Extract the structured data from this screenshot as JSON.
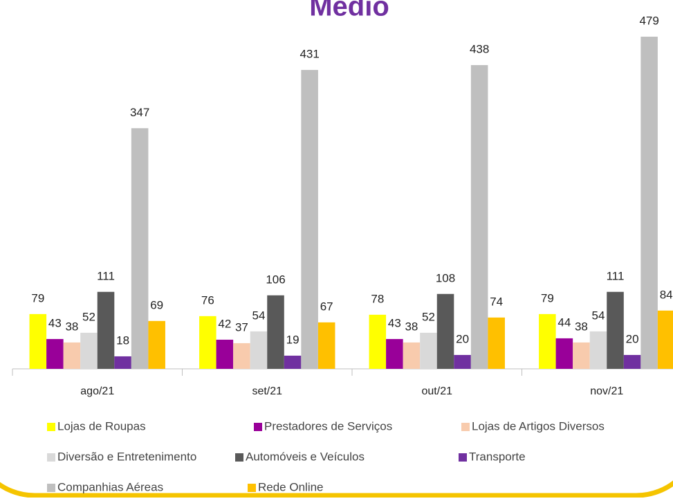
{
  "chart_data": {
    "type": "bar",
    "title": "Médio",
    "categories": [
      "ago/21",
      "set/21",
      "out/21",
      "nov/21"
    ],
    "series": [
      {
        "name": "Lojas de Roupas",
        "color": "#ffff00",
        "values": [
          79,
          76,
          78,
          79
        ]
      },
      {
        "name": "Prestadores de Serviços",
        "color": "#990099",
        "values": [
          43,
          42,
          43,
          44
        ]
      },
      {
        "name": "Lojas de Artigos Diversos",
        "color": "#f8cbad",
        "values": [
          38,
          37,
          38,
          38
        ]
      },
      {
        "name": "Diversão e Entretenimento",
        "color": "#d9d9d9",
        "values": [
          52,
          54,
          52,
          54
        ]
      },
      {
        "name": "Automóveis e Veículos",
        "color": "#595959",
        "values": [
          111,
          106,
          108,
          111
        ]
      },
      {
        "name": "Transporte",
        "color": "#7030a0",
        "values": [
          18,
          19,
          20,
          20
        ]
      },
      {
        "name": "Companhias Aéreas",
        "color": "#bfbfbf",
        "values": [
          347,
          431,
          438,
          479
        ]
      },
      {
        "name": "Rede Online",
        "color": "#ffc000",
        "values": [
          69,
          67,
          74,
          84
        ]
      }
    ],
    "legend": "bottom"
  }
}
